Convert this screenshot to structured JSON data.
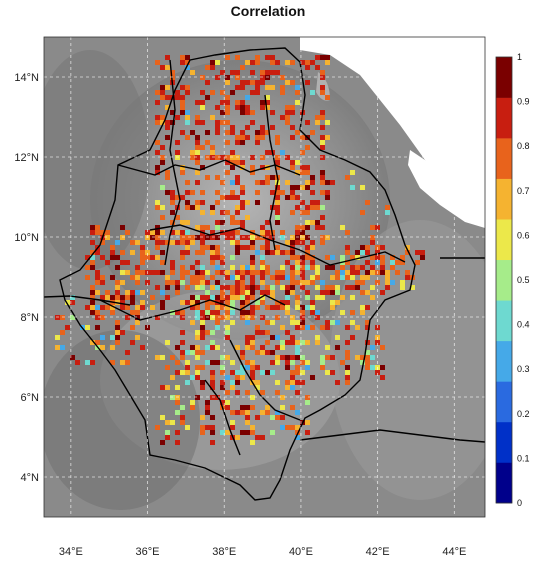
{
  "title": "Correlation",
  "map": {
    "lat_ticks": [
      "14°N",
      "12°N",
      "10°N",
      "8°N",
      "6°N",
      "4°N"
    ],
    "lon_ticks": [
      "34°E",
      "36°E",
      "38°E",
      "40°E",
      "42°E",
      "44°E"
    ],
    "lat_values": [
      14,
      12,
      10,
      8,
      6,
      4
    ],
    "lon_values": [
      34,
      36,
      38,
      40,
      42,
      44
    ],
    "lon_range": [
      33.3,
      44.8
    ],
    "lat_range": [
      3.0,
      15.0
    ],
    "grid": true,
    "background": "grayscale elevation relief",
    "sea_color": "#ffffff"
  },
  "colorbar": {
    "labels": [
      "0",
      "0.1",
      "0.2",
      "0.3",
      "0.4",
      "0.5",
      "0.6",
      "0.7",
      "0.8",
      "0.9",
      "1"
    ],
    "colors": [
      "#00008b",
      "#0030c8",
      "#2a6ae0",
      "#45a9e8",
      "#6ed9d0",
      "#a6ec8a",
      "#ece84a",
      "#f5b330",
      "#e8631c",
      "#c81e10",
      "#7a0000"
    ]
  }
}
